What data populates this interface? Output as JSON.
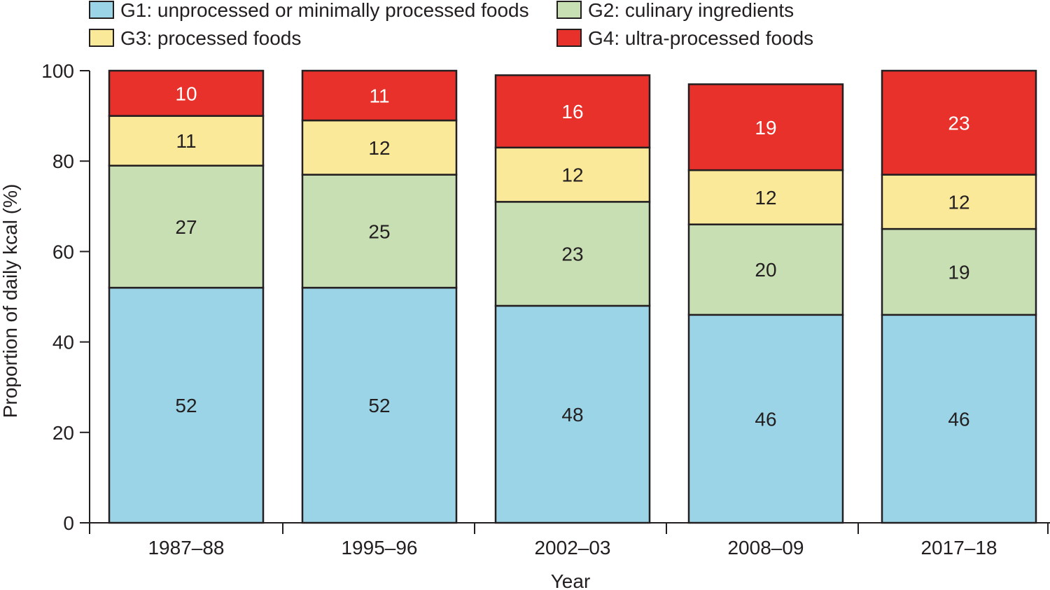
{
  "chart_data": {
    "type": "bar",
    "stacked": true,
    "categories": [
      "1987–88",
      "1995–96",
      "2002–03",
      "2008–09",
      "2017–18"
    ],
    "series": [
      {
        "name": "G1: unprocessed or minimally processed foods",
        "color": "#9ad4e6",
        "label_color": "#231f20",
        "values": [
          52,
          52,
          48,
          46,
          46
        ]
      },
      {
        "name": "G2: culinary ingredients",
        "color": "#c8dfb4",
        "label_color": "#231f20",
        "values": [
          27,
          25,
          23,
          20,
          19
        ]
      },
      {
        "name": "G3: processed foods",
        "color": "#fbe99a",
        "label_color": "#231f20",
        "values": [
          11,
          12,
          12,
          12,
          12
        ]
      },
      {
        "name": "G4: ultra-processed foods",
        "color": "#e8312a",
        "label_color": "#ffffff",
        "values": [
          10,
          11,
          16,
          19,
          23
        ]
      }
    ],
    "xlabel": "Year",
    "ylabel": "Proportion of daily kcal (%)",
    "ylim": [
      0,
      100
    ],
    "yticks": [
      0,
      20,
      40,
      60,
      80,
      100
    ],
    "legend_position": "top",
    "grid": false
  }
}
